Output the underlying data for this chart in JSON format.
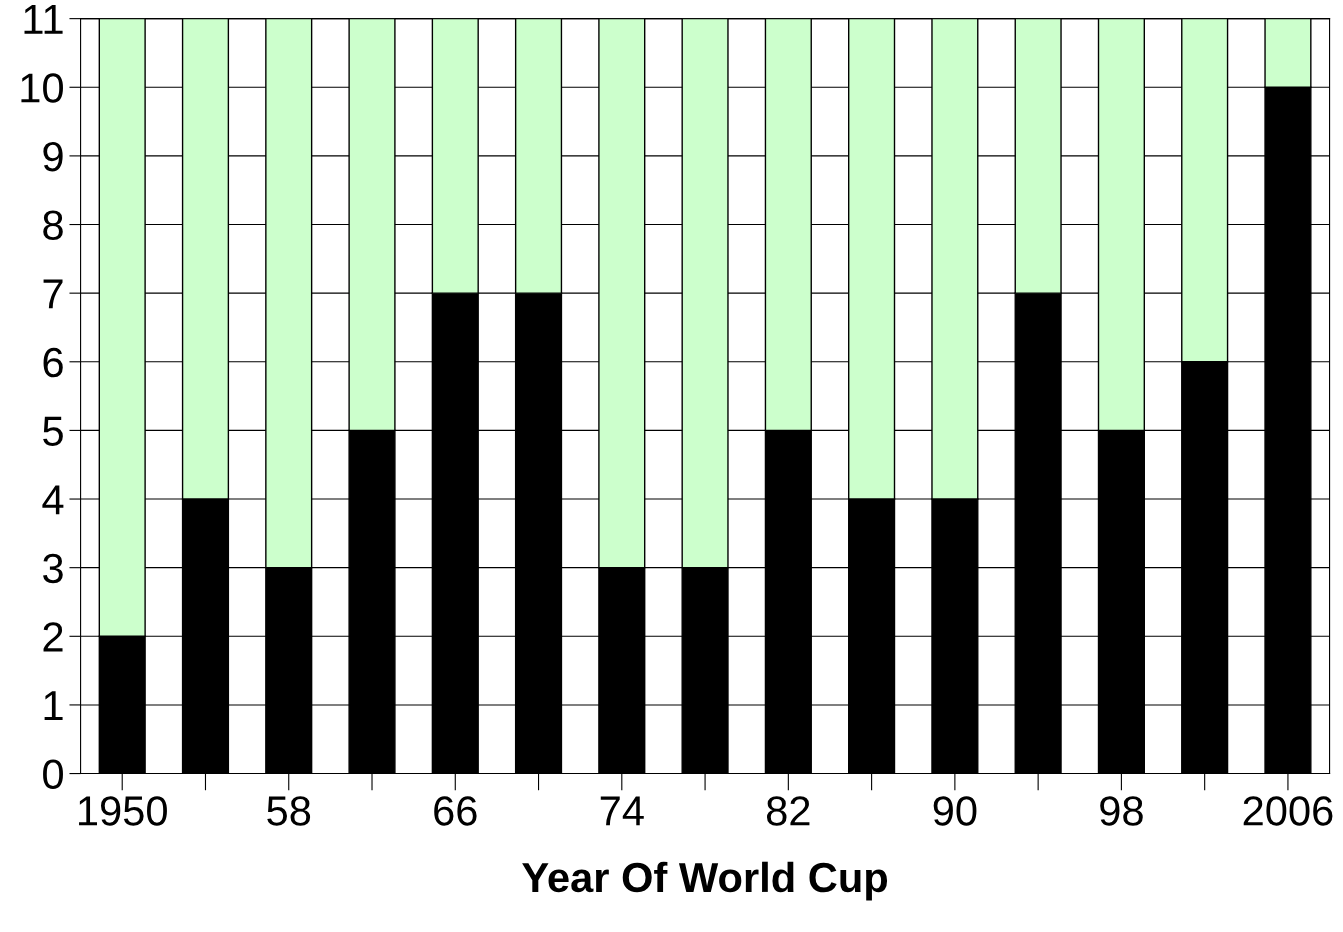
{
  "chart_data": {
    "type": "bar",
    "stacked": true,
    "xlabel": "Year Of World Cup",
    "categories": [
      "1950",
      null,
      "58",
      null,
      "66",
      null,
      "74",
      null,
      "82",
      null,
      "90",
      null,
      "98",
      null,
      "2006"
    ],
    "series": [
      {
        "color": "#000000",
        "values": [
          2,
          4,
          3,
          5,
          7,
          7,
          3,
          3,
          5,
          4,
          4,
          7,
          5,
          6,
          10
        ]
      },
      {
        "color": "#ccffcc",
        "values": [
          9,
          7,
          8,
          6,
          4,
          4,
          8,
          8,
          6,
          7,
          7,
          4,
          6,
          5,
          1
        ]
      }
    ],
    "ylim": [
      0,
      11
    ],
    "yticks": [
      0,
      1,
      2,
      3,
      4,
      5,
      6,
      7,
      8,
      9,
      10,
      11
    ],
    "grid": "y"
  }
}
